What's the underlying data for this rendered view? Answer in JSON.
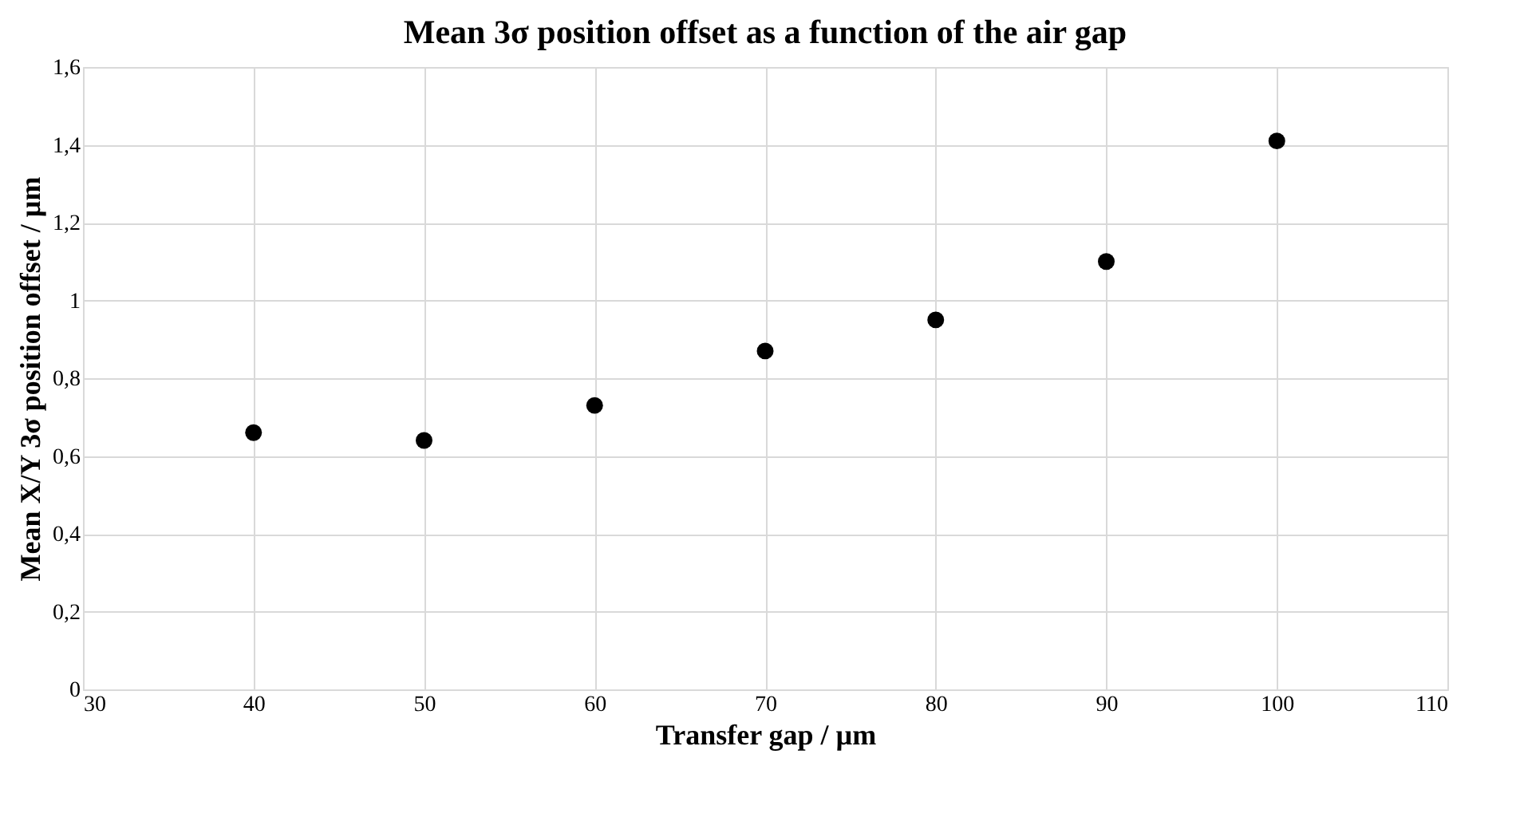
{
  "chart_data": {
    "type": "scatter",
    "title": "Mean 3σ position offset as a function of the air gap",
    "xlabel": "Transfer gap / µm",
    "ylabel": "Mean X/Y 3σ position offset / µm",
    "x": [
      40,
      50,
      60,
      70,
      80,
      90,
      100
    ],
    "series": [
      {
        "color": "#000000",
        "values": [
          0.66,
          0.64,
          0.73,
          0.87,
          0.95,
          1.1,
          1.41
        ]
      }
    ],
    "xlim": [
      30,
      110
    ],
    "xticks": [
      30,
      40,
      50,
      60,
      70,
      80,
      90,
      100,
      110
    ],
    "ylim": [
      0,
      1.6
    ],
    "yticks": [
      0,
      {
        "value": 0.2,
        "label": "0,2"
      },
      {
        "value": 0.4,
        "label": "0,4"
      },
      {
        "value": 0.6,
        "label": "0,6"
      },
      {
        "value": 0.8,
        "label": "0,8"
      },
      1,
      {
        "value": 1.2,
        "label": "1,2"
      },
      {
        "value": 1.4,
        "label": "1,4"
      },
      {
        "value": 1.6,
        "label": "1,6"
      }
    ],
    "grid": true,
    "marker": "circle",
    "legend": false
  }
}
